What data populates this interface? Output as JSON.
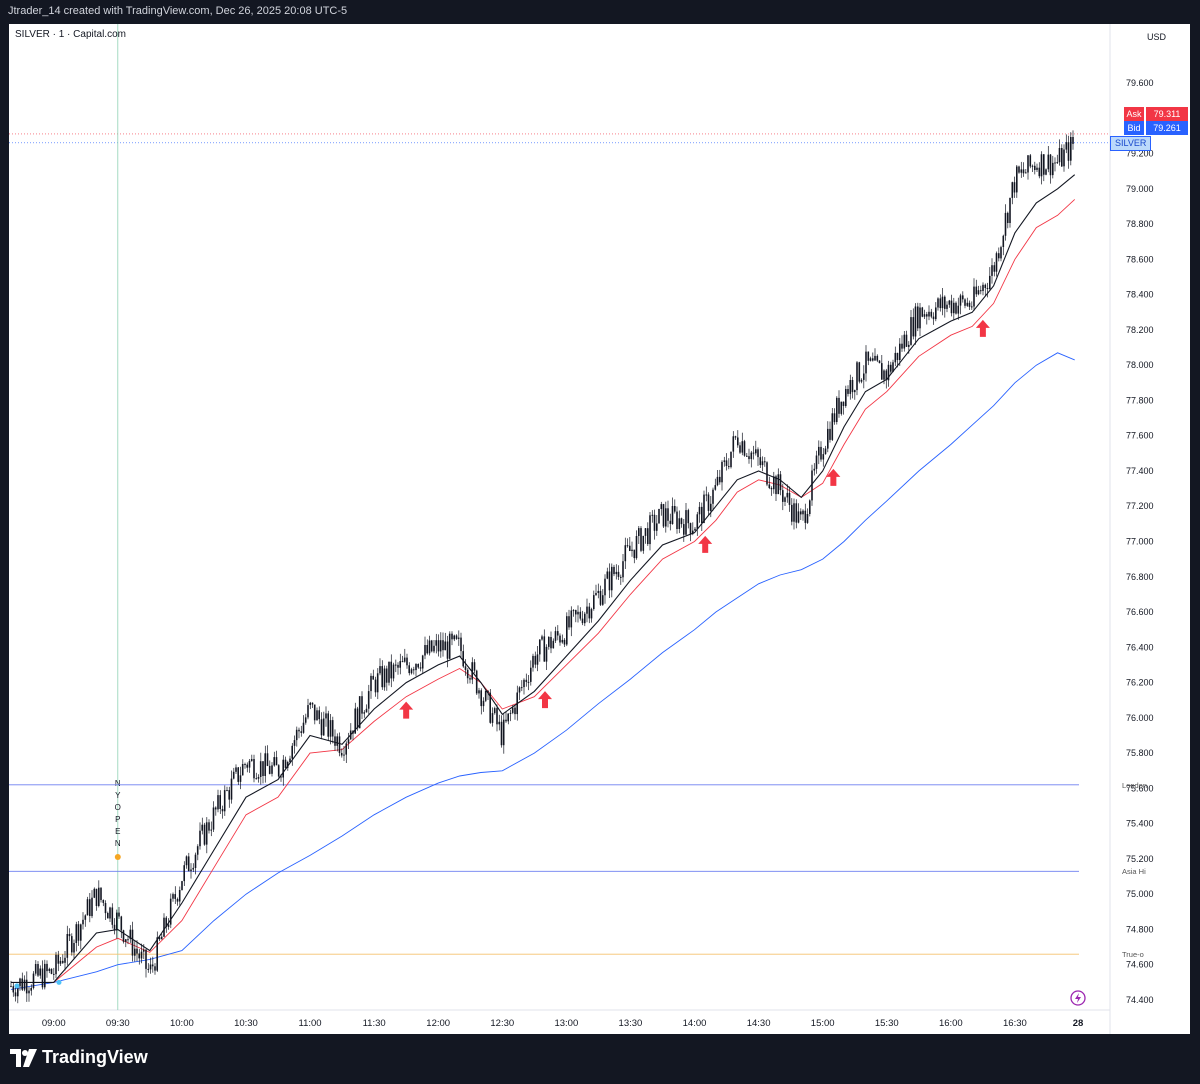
{
  "header": {
    "caption": "Jtrader_14 created with TradingView.com, Dec 26, 2025 20:08 UTC-5"
  },
  "chart_header": {
    "symbol": "SILVER · 1 · Capital.com",
    "currency": "USD"
  },
  "quotes": {
    "ask_label": "Ask",
    "ask_value": "79.311",
    "bid_label": "Bid",
    "bid_value": "79.261",
    "symbol_tag": "SILVER"
  },
  "levels": [
    {
      "name": "London",
      "value": 75.62,
      "color": "#6d7ff0"
    },
    {
      "name": "Asia Hi",
      "value": 75.13,
      "color": "#6d7ff0"
    },
    {
      "name": "True-o",
      "value": 74.66,
      "color": "#f5c16c"
    }
  ],
  "session_marker": {
    "label": "NY OPEN",
    "time": "09:30"
  },
  "footer": {
    "brand": "TradingView"
  },
  "colors": {
    "candle": "#131722",
    "ema_fast": "#131722",
    "ema_mid": "#f23645",
    "ema_slow": "#2962ff",
    "arrow": "#f23645",
    "ask": "#f23645",
    "bid": "#2962ff"
  },
  "icons": [
    "tradingview-logo-icon",
    "flash-icon",
    "up-arrow-icon"
  ],
  "chart_data": {
    "type": "line",
    "title": "SILVER · 1 · Capital.com",
    "x": [
      "08:40",
      "09:00",
      "09:20",
      "09:30",
      "09:45",
      "10:00",
      "10:15",
      "10:30",
      "10:45",
      "11:00",
      "11:15",
      "11:30",
      "11:45",
      "12:00",
      "12:10",
      "12:20",
      "12:30",
      "12:45",
      "13:00",
      "13:15",
      "13:30",
      "13:45",
      "14:00",
      "14:10",
      "14:20",
      "14:30",
      "14:40",
      "14:50",
      "15:00",
      "15:10",
      "15:20",
      "15:30",
      "15:45",
      "16:00",
      "16:10",
      "16:20",
      "16:30",
      "16:40",
      "16:50",
      "16:58"
    ],
    "series": [
      {
        "values": [
          74.48,
          74.56,
          75.0,
          74.85,
          74.55,
          75.1,
          75.45,
          75.75,
          75.7,
          76.05,
          75.85,
          76.2,
          76.3,
          76.4,
          76.4,
          76.15,
          75.9,
          76.35,
          76.5,
          76.7,
          76.95,
          77.15,
          77.1,
          77.3,
          77.6,
          77.45,
          77.3,
          77.1,
          77.55,
          77.85,
          78.0,
          77.95,
          78.3,
          78.35,
          78.35,
          78.55,
          79.05,
          79.15,
          79.15,
          79.26
        ]
      },
      {
        "values": [
          74.5,
          74.5,
          74.78,
          74.8,
          74.68,
          74.95,
          75.25,
          75.55,
          75.65,
          75.9,
          75.85,
          76.05,
          76.2,
          76.3,
          76.35,
          76.2,
          76.02,
          76.15,
          76.35,
          76.55,
          76.78,
          76.98,
          77.05,
          77.2,
          77.35,
          77.4,
          77.35,
          77.25,
          77.4,
          77.65,
          77.85,
          77.92,
          78.15,
          78.25,
          78.3,
          78.45,
          78.75,
          78.92,
          79.0,
          79.08
        ]
      },
      {
        "values": [
          74.5,
          74.5,
          74.7,
          74.75,
          74.67,
          74.85,
          75.15,
          75.45,
          75.55,
          75.8,
          75.82,
          75.98,
          76.12,
          76.22,
          76.28,
          76.2,
          76.05,
          76.12,
          76.3,
          76.48,
          76.7,
          76.9,
          77.0,
          77.12,
          77.28,
          77.35,
          77.32,
          77.25,
          77.33,
          77.55,
          77.75,
          77.85,
          78.05,
          78.17,
          78.22,
          78.35,
          78.6,
          78.78,
          78.85,
          78.94
        ]
      },
      {
        "values": [
          74.46,
          74.5,
          74.56,
          74.6,
          74.63,
          74.68,
          74.85,
          75.0,
          75.12,
          75.22,
          75.33,
          75.45,
          75.55,
          75.63,
          75.67,
          75.69,
          75.7,
          75.8,
          75.93,
          76.08,
          76.22,
          76.37,
          76.5,
          76.6,
          76.68,
          76.76,
          76.81,
          76.84,
          76.9,
          77.0,
          77.12,
          77.23,
          77.4,
          77.55,
          77.66,
          77.77,
          77.9,
          78.0,
          78.07,
          78.03
        ]
      }
    ],
    "signals_x": [
      "11:45",
      "12:50",
      "14:05",
      "15:05",
      "16:15"
    ],
    "yticks": [
      74.4,
      74.6,
      74.8,
      75.0,
      75.2,
      75.4,
      75.6,
      75.8,
      76.0,
      76.2,
      76.4,
      76.6,
      76.8,
      77.0,
      77.2,
      77.4,
      77.6,
      77.8,
      78.0,
      78.2,
      78.4,
      78.6,
      78.8,
      79.0,
      79.2,
      79.6
    ],
    "xticks": [
      "09:00",
      "09:30",
      "10:00",
      "10:30",
      "11:00",
      "11:30",
      "12:00",
      "12:30",
      "13:00",
      "13:30",
      "14:00",
      "14:30",
      "15:00",
      "15:30",
      "16:00",
      "16:30",
      "28"
    ],
    "ylim": [
      74.3,
      79.8
    ],
    "grid": false,
    "legend": "none"
  }
}
